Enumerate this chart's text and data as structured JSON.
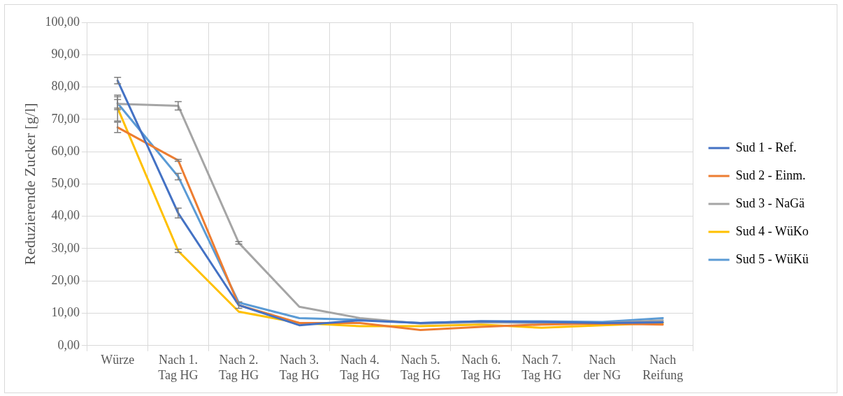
{
  "chart_data": {
    "type": "line",
    "ylabel": "Reduzierende Zucker [g/l]",
    "categories": [
      "Würze",
      "Nach 1. Tag HG",
      "Nach 2. Tag HG",
      "Nach 3. Tag HG",
      "Nach 4. Tag HG",
      "Nach 5. Tag HG",
      "Nach 6. Tag HG",
      "Nach 7. Tag HG",
      "Nach der NG",
      "Nach Reifung"
    ],
    "ylim": [
      0,
      100
    ],
    "yticks": [
      {
        "value": 0,
        "label": "0,00"
      },
      {
        "value": 10,
        "label": "10,00"
      },
      {
        "value": 20,
        "label": "20,00"
      },
      {
        "value": 30,
        "label": "30,00"
      },
      {
        "value": 40,
        "label": "40,00"
      },
      {
        "value": 50,
        "label": "50,00"
      },
      {
        "value": 60,
        "label": "60,00"
      },
      {
        "value": 70,
        "label": "70,00"
      },
      {
        "value": 80,
        "label": "80,00"
      },
      {
        "value": 90,
        "label": "90,00"
      },
      {
        "value": 100,
        "label": "100,00"
      }
    ],
    "grid": true,
    "legend": "right",
    "marker": "none",
    "line_style": "solid",
    "series": [
      {
        "name": "Sud 1 - Ref.",
        "color": "#4472c4",
        "values": [
          82,
          41,
          12.5,
          6.3,
          7.8,
          7,
          7.5,
          7.3,
          7,
          7.2
        ],
        "errors": [
          1,
          1.5,
          1,
          null,
          null,
          null,
          null,
          null,
          null,
          null
        ]
      },
      {
        "name": "Sud 2 - Einm.",
        "color": "#ed7d31",
        "values": [
          67.5,
          57.3,
          12.5,
          7,
          7,
          4.8,
          5.8,
          6.5,
          6.8,
          6.5
        ],
        "errors": [
          1.6,
          0.3,
          null,
          null,
          null,
          null,
          null,
          null,
          null,
          null
        ]
      },
      {
        "name": "Sud 3 - NaGä",
        "color": "#a5a5a5",
        "values": [
          74.8,
          74.2,
          31.8,
          12,
          8.5,
          6.8,
          7.2,
          7,
          7,
          7.8
        ],
        "errors": [
          1.3,
          1.3,
          0.4,
          null,
          null,
          null,
          null,
          null,
          null,
          null
        ]
      },
      {
        "name": "Sud 4 - WüKo",
        "color": "#ffc000",
        "values": [
          73.5,
          29.3,
          10.5,
          7,
          6,
          6,
          6.5,
          5.5,
          6.3,
          7
        ],
        "errors": [
          4,
          0.5,
          null,
          null,
          null,
          null,
          null,
          null,
          null,
          null
        ]
      },
      {
        "name": "Sud 5 - WüKü",
        "color": "#5b9bd5",
        "values": [
          75,
          52.3,
          13.3,
          8.5,
          8,
          7,
          7.5,
          7.5,
          7.3,
          8.5
        ],
        "errors": [
          2,
          1,
          null,
          null,
          null,
          null,
          null,
          null,
          null,
          null
        ]
      }
    ]
  }
}
